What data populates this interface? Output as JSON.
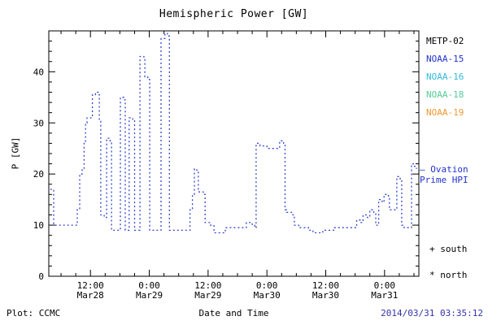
{
  "title": "Hemispheric Power [GW]",
  "legend": {
    "items": [
      {
        "label": "METP-02",
        "color": "#000000"
      },
      {
        "label": "NOAA-15",
        "color": "#2233cc"
      },
      {
        "label": "NOAA-16",
        "color": "#33bbdd"
      },
      {
        "label": "NOAA-18",
        "color": "#55cc99"
      },
      {
        "label": "NOAA-19",
        "color": "#ee9933"
      }
    ],
    "ovation_line1": "— Ovation",
    "ovation_line2": "Prime HPI",
    "ovation_color": "#2233cc",
    "south_marker": "+ south",
    "north_marker": "* north"
  },
  "footer": {
    "plot_credit": "Plot: CCMC",
    "xaxis_title": "Date and Time",
    "timestamp": "2014/03/31 03:35:12",
    "timestamp_color": "#3333aa"
  },
  "chart_data": {
    "type": "line",
    "style": "dotted-step",
    "title": "Hemispheric Power [GW]",
    "xlabel": "Date and Time",
    "ylabel": "P [GW]",
    "legend_entries": [
      "METP-02",
      "NOAA-15",
      "NOAA-16",
      "NOAA-18",
      "NOAA-19"
    ],
    "line_color": "#3344cc",
    "grid": false,
    "x_unit": "hours since 2014-03-28 00:00 UT",
    "xlim_hours": [
      3.5,
      79
    ],
    "ylim": [
      0,
      48
    ],
    "y_major_ticks": [
      0,
      10,
      20,
      30,
      40
    ],
    "x_major_ticks_hours": [
      12,
      24,
      36,
      48,
      60,
      72
    ],
    "x_tick_labels": [
      {
        "time": "12:00",
        "date": "Mar28"
      },
      {
        "time": "0:00",
        "date": "Mar29"
      },
      {
        "time": "12:00",
        "date": "Mar29"
      },
      {
        "time": "0:00",
        "date": "Mar30"
      },
      {
        "time": "12:00",
        "date": "Mar30"
      },
      {
        "time": "0:00",
        "date": "Mar31"
      }
    ],
    "x_hours": [
      3.8,
      4.5,
      9.0,
      9.3,
      9.8,
      10.3,
      10.7,
      11.0,
      11.3,
      12.1,
      12.4,
      13.0,
      13.6,
      13.8,
      14.1,
      14.8,
      15.3,
      16.0,
      16.3,
      17.8,
      18.1,
      18.8,
      19.1,
      19.6,
      19.9,
      20.6,
      21.0,
      21.8,
      22.1,
      22.9,
      23.1,
      23.7,
      24.1,
      26.1,
      26.4,
      27.2,
      27.7,
      28.1,
      31.9,
      32.3,
      32.8,
      33.2,
      33.7,
      34.0,
      35.0,
      35.4,
      36.3,
      37.2,
      39.2,
      39.5,
      43.3,
      43.8,
      45.0,
      45.5,
      45.8,
      46.6,
      48.0,
      50.4,
      50.6,
      51.4,
      51.7,
      52.0,
      53.3,
      53.6,
      54.5,
      56.5,
      57.4,
      59.1,
      59.4,
      61.5,
      61.8,
      66.0,
      66.3,
      67.2,
      67.6,
      68.5,
      69.0,
      69.8,
      70.2,
      70.8,
      71.5,
      71.9,
      72.8,
      73.0,
      74.5,
      75.2,
      75.5,
      76.0,
      77.3,
      77.5,
      78.1,
      78.5
    ],
    "hpi_gw": [
      17,
      10,
      10,
      13,
      20,
      21,
      26,
      30,
      31,
      31,
      35.5,
      36,
      35.5,
      30.5,
      12,
      11.5,
      27,
      26.5,
      9,
      9,
      35,
      34.5,
      9,
      9,
      31,
      30.5,
      9,
      9,
      43,
      42.5,
      39,
      38.5,
      9,
      9,
      46.5,
      47.5,
      47,
      9,
      9,
      13,
      16,
      21,
      20.5,
      16.5,
      16,
      10.5,
      10,
      8.5,
      8.5,
      9.5,
      9.5,
      10.5,
      10,
      9.5,
      26,
      25.5,
      25,
      25,
      26.5,
      26,
      13,
      12.5,
      12,
      10,
      9.5,
      9,
      8.5,
      8.5,
      9,
      9,
      9.5,
      9.5,
      11,
      10.5,
      12,
      11.5,
      13,
      12.5,
      10,
      15,
      14.5,
      16,
      15.5,
      13,
      19.5,
      19,
      10,
      9.5,
      9.5,
      22,
      21.5,
      21
    ]
  }
}
